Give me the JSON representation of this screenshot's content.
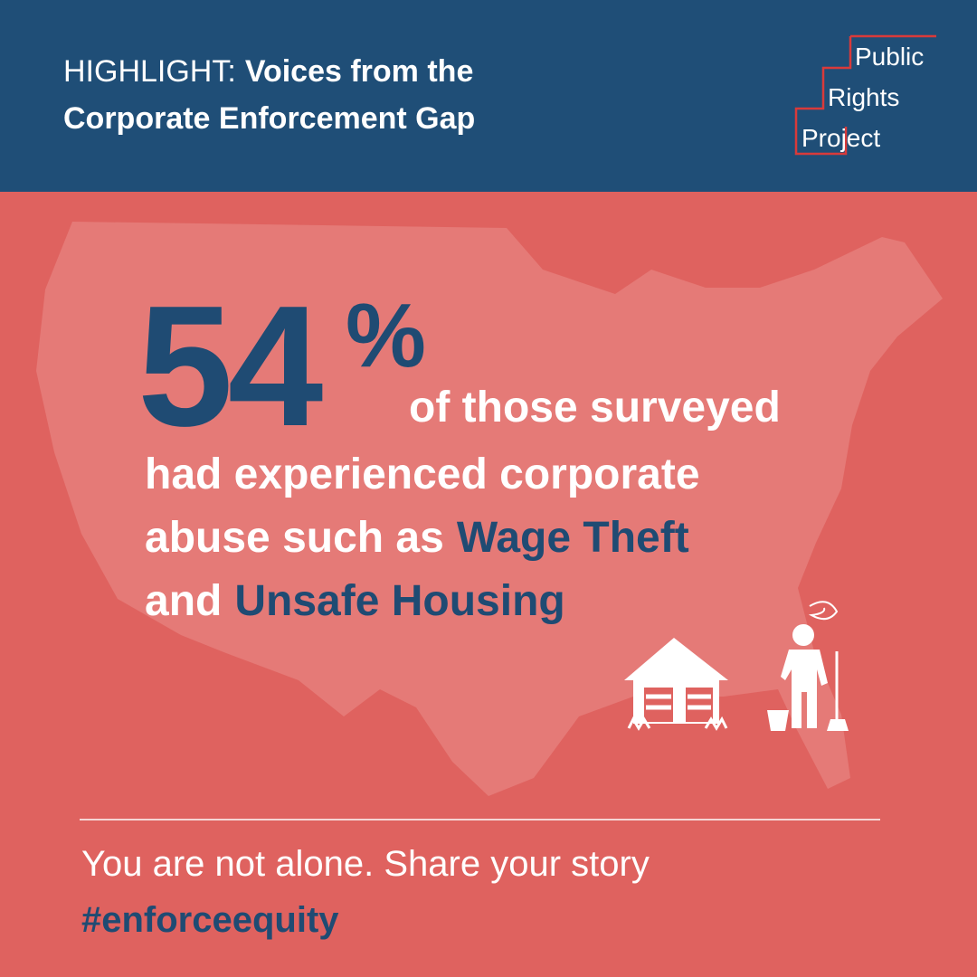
{
  "header": {
    "label": "HIGHLIGHT:",
    "title_lines": [
      "Voices from the",
      "Corporate Enforcement Gap"
    ]
  },
  "logo": {
    "lines": [
      "Public",
      "Rights",
      "Project"
    ]
  },
  "stat": {
    "number": "54",
    "unit": "%",
    "lines": [
      [
        "of those surveyed"
      ],
      [
        "had experienced corporate"
      ],
      [
        "abuse such as",
        "Wage Theft"
      ],
      [
        "and",
        "Unsafe Housing"
      ]
    ]
  },
  "footer": {
    "message": "You are not alone. Share your story",
    "hashtag": "#enforceequity"
  }
}
